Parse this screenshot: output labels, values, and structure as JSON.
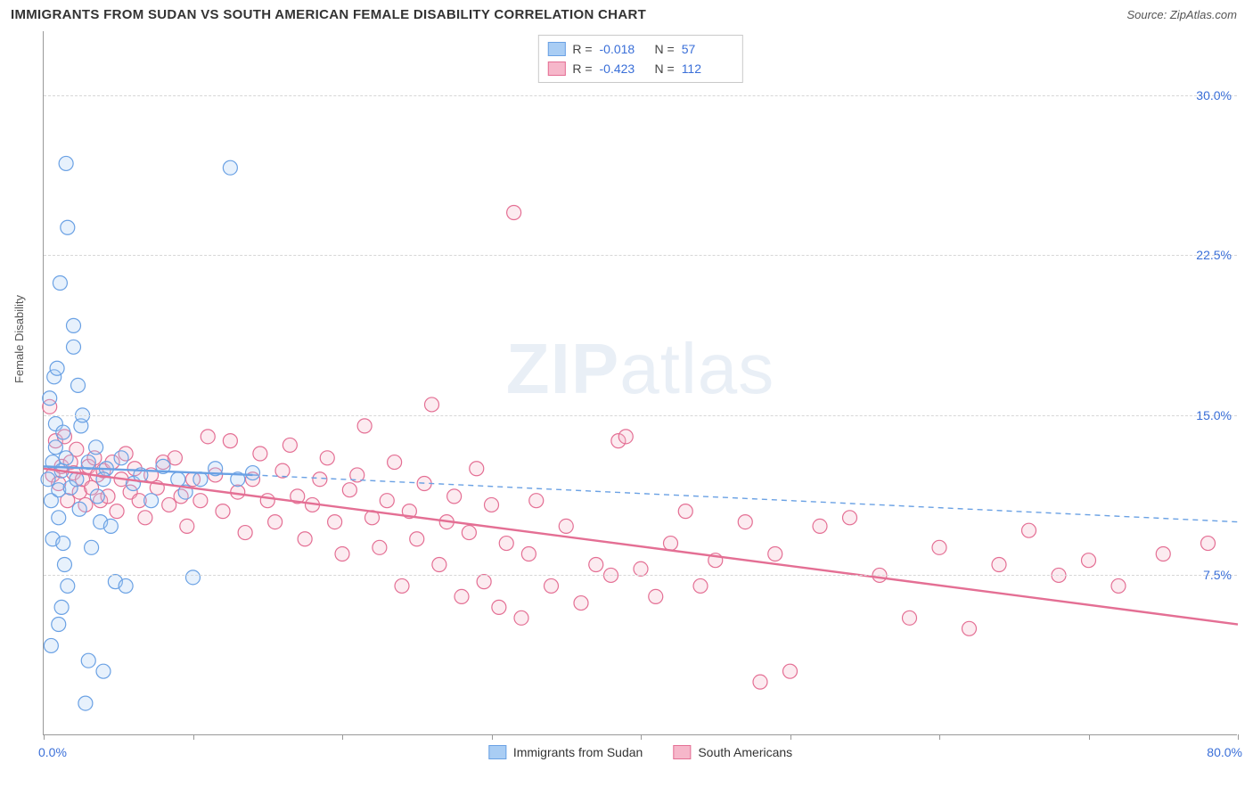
{
  "header": {
    "title": "IMMIGRANTS FROM SUDAN VS SOUTH AMERICAN FEMALE DISABILITY CORRELATION CHART",
    "source_prefix": "Source: ",
    "source_name": "ZipAtlas.com"
  },
  "watermark": {
    "bold": "ZIP",
    "rest": "atlas"
  },
  "chart": {
    "ylabel": "Female Disability",
    "x_domain": [
      0,
      80
    ],
    "y_domain": [
      0,
      33
    ],
    "x_origin_label": "0.0%",
    "x_max_label": "80.0%",
    "y_ticks": [
      {
        "v": 7.5,
        "label": "7.5%"
      },
      {
        "v": 15.0,
        "label": "15.0%"
      },
      {
        "v": 22.5,
        "label": "22.5%"
      },
      {
        "v": 30.0,
        "label": "30.0%"
      }
    ],
    "x_tick_positions": [
      0,
      10,
      20,
      30,
      40,
      50,
      60,
      70,
      80
    ],
    "grid_color": "#d7d7d7",
    "marker_radius": 8
  },
  "series": {
    "sudan": {
      "label": "Immigrants from Sudan",
      "stroke": "#6aa1e4",
      "fill": "#a9cdf4",
      "R": "-0.018",
      "N": "57",
      "trend": {
        "x1": 0,
        "y1": 12.6,
        "x2": 14,
        "y2": 12.2,
        "ext_x2": 80,
        "ext_y2": 10.0
      },
      "points": [
        [
          0.3,
          12.0
        ],
        [
          0.4,
          15.8
        ],
        [
          0.5,
          11.0
        ],
        [
          0.6,
          12.8
        ],
        [
          0.6,
          9.2
        ],
        [
          0.7,
          16.8
        ],
        [
          0.8,
          13.5
        ],
        [
          0.8,
          14.6
        ],
        [
          0.9,
          17.2
        ],
        [
          1.0,
          11.5
        ],
        [
          1.0,
          10.2
        ],
        [
          1.1,
          21.2
        ],
        [
          1.2,
          12.4
        ],
        [
          1.3,
          14.2
        ],
        [
          1.3,
          9.0
        ],
        [
          1.4,
          8.0
        ],
        [
          1.5,
          13.0
        ],
        [
          1.5,
          26.8
        ],
        [
          1.6,
          23.8
        ],
        [
          1.8,
          11.6
        ],
        [
          2.0,
          18.2
        ],
        [
          2.0,
          19.2
        ],
        [
          2.2,
          12.0
        ],
        [
          2.3,
          16.4
        ],
        [
          2.4,
          10.6
        ],
        [
          2.5,
          14.5
        ],
        [
          2.8,
          1.5
        ],
        [
          3.0,
          12.8
        ],
        [
          3.2,
          8.8
        ],
        [
          3.5,
          13.5
        ],
        [
          3.6,
          11.2
        ],
        [
          3.8,
          10.0
        ],
        [
          4.0,
          3.0
        ],
        [
          4.2,
          12.5
        ],
        [
          4.5,
          9.8
        ],
        [
          4.8,
          7.2
        ],
        [
          5.2,
          13.0
        ],
        [
          5.5,
          7.0
        ],
        [
          6.0,
          11.8
        ],
        [
          6.5,
          12.2
        ],
        [
          7.2,
          11.0
        ],
        [
          8.0,
          12.6
        ],
        [
          9.0,
          12.0
        ],
        [
          9.5,
          11.4
        ],
        [
          10.0,
          7.4
        ],
        [
          10.5,
          12.0
        ],
        [
          11.5,
          12.5
        ],
        [
          12.5,
          26.6
        ],
        [
          13.0,
          12.0
        ],
        [
          14.0,
          12.3
        ],
        [
          0.5,
          4.2
        ],
        [
          1.0,
          5.2
        ],
        [
          1.2,
          6.0
        ],
        [
          1.6,
          7.0
        ],
        [
          2.6,
          15.0
        ],
        [
          3.0,
          3.5
        ],
        [
          4.0,
          12.0
        ]
      ]
    },
    "south_american": {
      "label": "South Americans",
      "stroke": "#e46f94",
      "fill": "#f6b7ca",
      "R": "-0.423",
      "N": "112",
      "trend": {
        "x1": 0,
        "y1": 12.5,
        "x2": 80,
        "y2": 5.2
      },
      "points": [
        [
          0.4,
          15.4
        ],
        [
          0.6,
          12.2
        ],
        [
          0.8,
          13.8
        ],
        [
          1.0,
          11.8
        ],
        [
          1.2,
          12.6
        ],
        [
          1.4,
          14.0
        ],
        [
          1.6,
          11.0
        ],
        [
          1.8,
          12.8
        ],
        [
          2.0,
          12.3
        ],
        [
          2.2,
          13.4
        ],
        [
          2.4,
          11.4
        ],
        [
          2.6,
          12.0
        ],
        [
          2.8,
          10.8
        ],
        [
          3.0,
          12.6
        ],
        [
          3.2,
          11.6
        ],
        [
          3.4,
          13.0
        ],
        [
          3.6,
          12.2
        ],
        [
          3.8,
          11.0
        ],
        [
          4.0,
          12.4
        ],
        [
          4.3,
          11.2
        ],
        [
          4.6,
          12.8
        ],
        [
          4.9,
          10.5
        ],
        [
          5.2,
          12.0
        ],
        [
          5.5,
          13.2
        ],
        [
          5.8,
          11.4
        ],
        [
          6.1,
          12.5
        ],
        [
          6.4,
          11.0
        ],
        [
          6.8,
          10.2
        ],
        [
          7.2,
          12.2
        ],
        [
          7.6,
          11.6
        ],
        [
          8.0,
          12.8
        ],
        [
          8.4,
          10.8
        ],
        [
          8.8,
          13.0
        ],
        [
          9.2,
          11.2
        ],
        [
          9.6,
          9.8
        ],
        [
          10.0,
          12.0
        ],
        [
          10.5,
          11.0
        ],
        [
          11.0,
          14.0
        ],
        [
          11.5,
          12.2
        ],
        [
          12.0,
          10.5
        ],
        [
          12.5,
          13.8
        ],
        [
          13.0,
          11.4
        ],
        [
          13.5,
          9.5
        ],
        [
          14.0,
          12.0
        ],
        [
          14.5,
          13.2
        ],
        [
          15.0,
          11.0
        ],
        [
          15.5,
          10.0
        ],
        [
          16.0,
          12.4
        ],
        [
          16.5,
          13.6
        ],
        [
          17.0,
          11.2
        ],
        [
          17.5,
          9.2
        ],
        [
          18.0,
          10.8
        ],
        [
          18.5,
          12.0
        ],
        [
          19.0,
          13.0
        ],
        [
          19.5,
          10.0
        ],
        [
          20.0,
          8.5
        ],
        [
          20.5,
          11.5
        ],
        [
          21.0,
          12.2
        ],
        [
          21.5,
          14.5
        ],
        [
          22.0,
          10.2
        ],
        [
          22.5,
          8.8
        ],
        [
          23.0,
          11.0
        ],
        [
          23.5,
          12.8
        ],
        [
          24.0,
          7.0
        ],
        [
          24.5,
          10.5
        ],
        [
          25.0,
          9.2
        ],
        [
          25.5,
          11.8
        ],
        [
          26.0,
          15.5
        ],
        [
          26.5,
          8.0
        ],
        [
          27.0,
          10.0
        ],
        [
          27.5,
          11.2
        ],
        [
          28.0,
          6.5
        ],
        [
          28.5,
          9.5
        ],
        [
          29.0,
          12.5
        ],
        [
          29.5,
          7.2
        ],
        [
          30.0,
          10.8
        ],
        [
          30.5,
          6.0
        ],
        [
          31.0,
          9.0
        ],
        [
          31.5,
          24.5
        ],
        [
          32.0,
          5.5
        ],
        [
          32.5,
          8.5
        ],
        [
          33.0,
          11.0
        ],
        [
          34.0,
          7.0
        ],
        [
          35.0,
          9.8
        ],
        [
          36.0,
          6.2
        ],
        [
          37.0,
          8.0
        ],
        [
          38.0,
          7.5
        ],
        [
          38.5,
          13.8
        ],
        [
          39.0,
          14.0
        ],
        [
          40.0,
          7.8
        ],
        [
          41.0,
          6.5
        ],
        [
          42.0,
          9.0
        ],
        [
          43.0,
          10.5
        ],
        [
          44.0,
          7.0
        ],
        [
          45.0,
          8.2
        ],
        [
          47.0,
          10.0
        ],
        [
          48.0,
          2.5
        ],
        [
          49.0,
          8.5
        ],
        [
          50.0,
          3.0
        ],
        [
          52.0,
          9.8
        ],
        [
          54.0,
          10.2
        ],
        [
          56.0,
          7.5
        ],
        [
          58.0,
          5.5
        ],
        [
          60.0,
          8.8
        ],
        [
          62.0,
          5.0
        ],
        [
          64.0,
          8.0
        ],
        [
          66.0,
          9.6
        ],
        [
          68.0,
          7.5
        ],
        [
          70.0,
          8.2
        ],
        [
          72.0,
          7.0
        ],
        [
          75.0,
          8.5
        ],
        [
          78.0,
          9.0
        ]
      ]
    }
  }
}
